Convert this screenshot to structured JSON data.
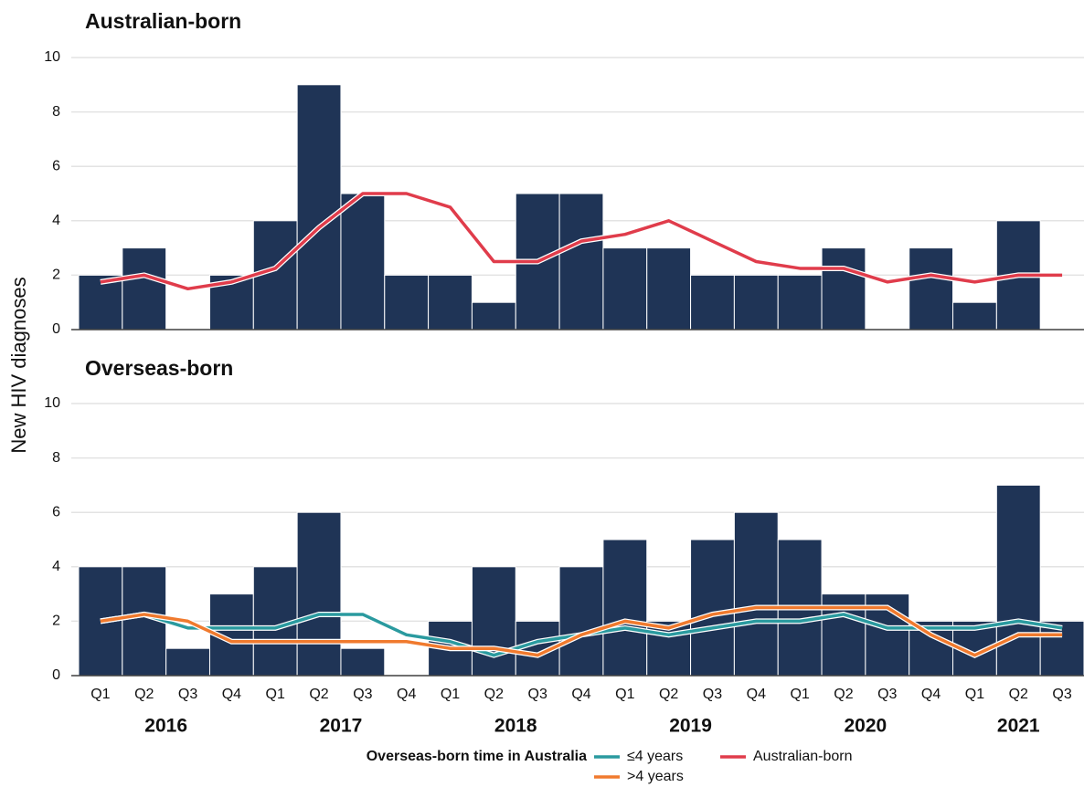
{
  "chart_data": [
    {
      "type": "bar",
      "title": "Australian-born",
      "ylabel": "New HIV diagnoses",
      "ylim": [
        0,
        10
      ],
      "yticks": [
        0,
        2,
        4,
        6,
        8,
        10
      ],
      "grid": true,
      "series": [
        {
          "type": "bar",
          "color": "#1f3456",
          "values": [
            2,
            3,
            0,
            2,
            4,
            9,
            5,
            2,
            2,
            1,
            5,
            5,
            3,
            3,
            2,
            2,
            2,
            3,
            0,
            3,
            1,
            4,
            0
          ]
        },
        {
          "type": "line",
          "name": "Australian-born",
          "color": "#e03c4b",
          "values": [
            1.75,
            2,
            1.5,
            1.75,
            2.25,
            3.75,
            5,
            5,
            4.5,
            2.5,
            2.5,
            3.25,
            3.5,
            4,
            3.25,
            2.5,
            2.25,
            2.25,
            1.75,
            2,
            1.75,
            2,
            2
          ]
        }
      ]
    },
    {
      "type": "bar",
      "title": "Overseas-born",
      "categories": [
        "Q1",
        "Q2",
        "Q3",
        "Q4",
        "Q1",
        "Q2",
        "Q3",
        "Q4",
        "Q1",
        "Q2",
        "Q3",
        "Q4",
        "Q1",
        "Q2",
        "Q3",
        "Q4",
        "Q1",
        "Q2",
        "Q3",
        "Q4",
        "Q1",
        "Q2",
        "Q3"
      ],
      "year_labels": [
        "2016",
        "2017",
        "2018",
        "2019",
        "2020",
        "2021"
      ],
      "ylim": [
        0,
        10
      ],
      "yticks": [
        0,
        2,
        4,
        6,
        8,
        10
      ],
      "grid": true,
      "legend_title": "Overseas-born time in Australia",
      "series": [
        {
          "type": "bar",
          "color": "#1f3456",
          "values": [
            4,
            4,
            1,
            3,
            4,
            6,
            1,
            0,
            2,
            4,
            2,
            4,
            5,
            2,
            5,
            6,
            5,
            3,
            3,
            2,
            2,
            7,
            2
          ]
        },
        {
          "type": "line",
          "name": "≤4 years",
          "color": "#2a9a9f",
          "values": [
            2,
            2.25,
            1.75,
            1.75,
            1.75,
            2.25,
            2.25,
            1.5,
            1.25,
            0.75,
            1.25,
            1.5,
            1.75,
            1.5,
            1.75,
            2,
            2,
            2.25,
            1.75,
            1.75,
            1.75,
            2,
            1.75
          ]
        },
        {
          "type": "line",
          "name": ">4 years",
          "color": "#f07a2e",
          "values": [
            2,
            2.25,
            2,
            1.25,
            1.25,
            1.25,
            1.25,
            1.25,
            1,
            1,
            0.75,
            1.5,
            2,
            1.75,
            2.25,
            2.5,
            2.5,
            2.5,
            2.5,
            1.5,
            0.75,
            1.5,
            1.5
          ]
        }
      ]
    }
  ]
}
